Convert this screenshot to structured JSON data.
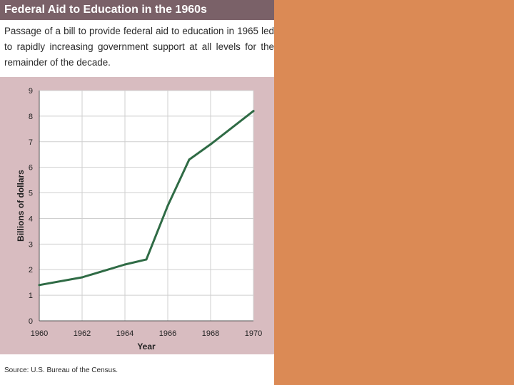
{
  "figure": {
    "title": "Federal Aid to Education in the 1960s",
    "caption": "Passage of a bill to provide federal aid to education in 1965 led to rapidly increasing government support at all levels for the remainder of the decade.",
    "source": "Source: U.S. Bureau of the Census."
  },
  "colors": {
    "title_bar": "#7a6168",
    "chart_background": "#d8bcc0",
    "plot_background": "#ffffff",
    "line": "#2f6b45",
    "right_panel": "#db8a55"
  },
  "chart_data": {
    "type": "line",
    "title": "Federal Aid to Education in the 1960s",
    "xlabel": "Year",
    "ylabel": "Billions of dollars",
    "x": [
      1960,
      1962,
      1964,
      1965,
      1966,
      1967,
      1968,
      1970
    ],
    "y": [
      1.4,
      1.7,
      2.2,
      2.4,
      4.5,
      6.3,
      6.9,
      8.2
    ],
    "xlim": [
      1960,
      1970
    ],
    "ylim": [
      0,
      9
    ],
    "xticks": [
      1960,
      1962,
      1964,
      1966,
      1968,
      1970
    ],
    "yticks": [
      0,
      1,
      2,
      3,
      4,
      5,
      6,
      7,
      8,
      9
    ],
    "grid": true,
    "legend": "none"
  }
}
